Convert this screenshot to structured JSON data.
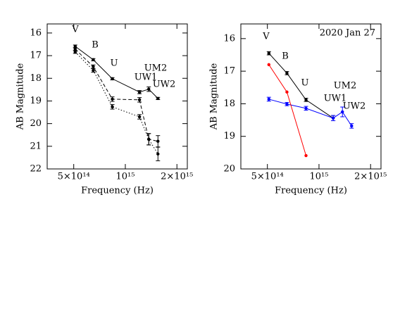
{
  "chart_data": [
    {
      "type": "line",
      "xlabel": "Frequency (Hz)",
      "ylabel": "AB Magnitude",
      "log_x": true,
      "xlim": [
        350000000000000,
        2300000000000000
      ],
      "ylim": [
        22,
        15.6
      ],
      "xticks": [
        {
          "value": 500000000000000,
          "label": "5×10¹⁴"
        },
        {
          "value": 1000000000000000,
          "label": "10¹⁵"
        },
        {
          "value": 2000000000000000,
          "label": "2×10¹⁵"
        }
      ],
      "yticks": [
        16,
        17,
        18,
        19,
        20,
        21,
        22
      ],
      "x": [
        510000000000000,
        650000000000000,
        840000000000000,
        1210000000000000,
        1370000000000000,
        1550000000000000
      ],
      "annotations": [
        "V",
        "B",
        "U",
        "UW1",
        "UM2",
        "UW2"
      ],
      "series": [
        {
          "color": "#000000",
          "dash": "solid",
          "values": [
            16.59,
            17.18,
            18.02,
            18.61,
            18.48,
            18.89
          ],
          "errors": [
            0.06,
            0.05,
            0.05,
            0.07,
            0.1,
            0.05
          ]
        },
        {
          "color": "#000000",
          "dash": "dashed",
          "values": [
            16.71,
            17.49,
            18.92,
            18.95,
            20.69,
            20.78
          ],
          "errors": [
            0.06,
            0.08,
            0.1,
            0.1,
            0.25,
            0.25
          ]
        },
        {
          "color": "#000000",
          "dash": "dotted",
          "values": [
            16.84,
            17.65,
            19.26,
            19.7,
            20.69,
            21.34
          ],
          "errors": [
            0.06,
            0.08,
            0.1,
            0.1,
            0.25,
            0.3
          ]
        }
      ]
    },
    {
      "type": "line",
      "xlabel": "Frequency (Hz)",
      "ylabel": "AB Magnitude",
      "log_x": true,
      "title": "2020 Jan 27",
      "xlim": [
        350000000000000,
        2300000000000000
      ],
      "ylim": [
        20,
        15.55
      ],
      "xticks": [
        {
          "value": 500000000000000,
          "label": "5×10¹⁴"
        },
        {
          "value": 1000000000000000,
          "label": "10¹⁵"
        },
        {
          "value": 2000000000000000,
          "label": "2×10¹⁵"
        }
      ],
      "yticks": [
        16,
        17,
        18,
        19,
        20
      ],
      "x": [
        510000000000000,
        650000000000000,
        840000000000000,
        1210000000000000,
        1370000000000000,
        1550000000000000
      ],
      "annotations": [
        "V",
        "B",
        "U",
        "UW1",
        "UM2",
        "UW2"
      ],
      "series": [
        {
          "color": "#000000",
          "dash": "solid",
          "values": [
            16.45,
            17.06,
            17.88,
            18.44,
            null,
            null
          ],
          "errors": [
            0.05,
            0.05,
            0.05,
            0.08,
            null,
            null
          ]
        },
        {
          "color": "#0000ff",
          "dash": "solid",
          "values": [
            17.86,
            18.01,
            18.14,
            18.44,
            18.25,
            18.68
          ],
          "errors": [
            0.06,
            0.05,
            0.06,
            0.08,
            0.15,
            0.07
          ]
        },
        {
          "color": "#ff0000",
          "dash": "solid",
          "values": [
            16.8,
            17.64,
            19.59,
            null,
            null,
            null
          ]
        }
      ]
    }
  ]
}
